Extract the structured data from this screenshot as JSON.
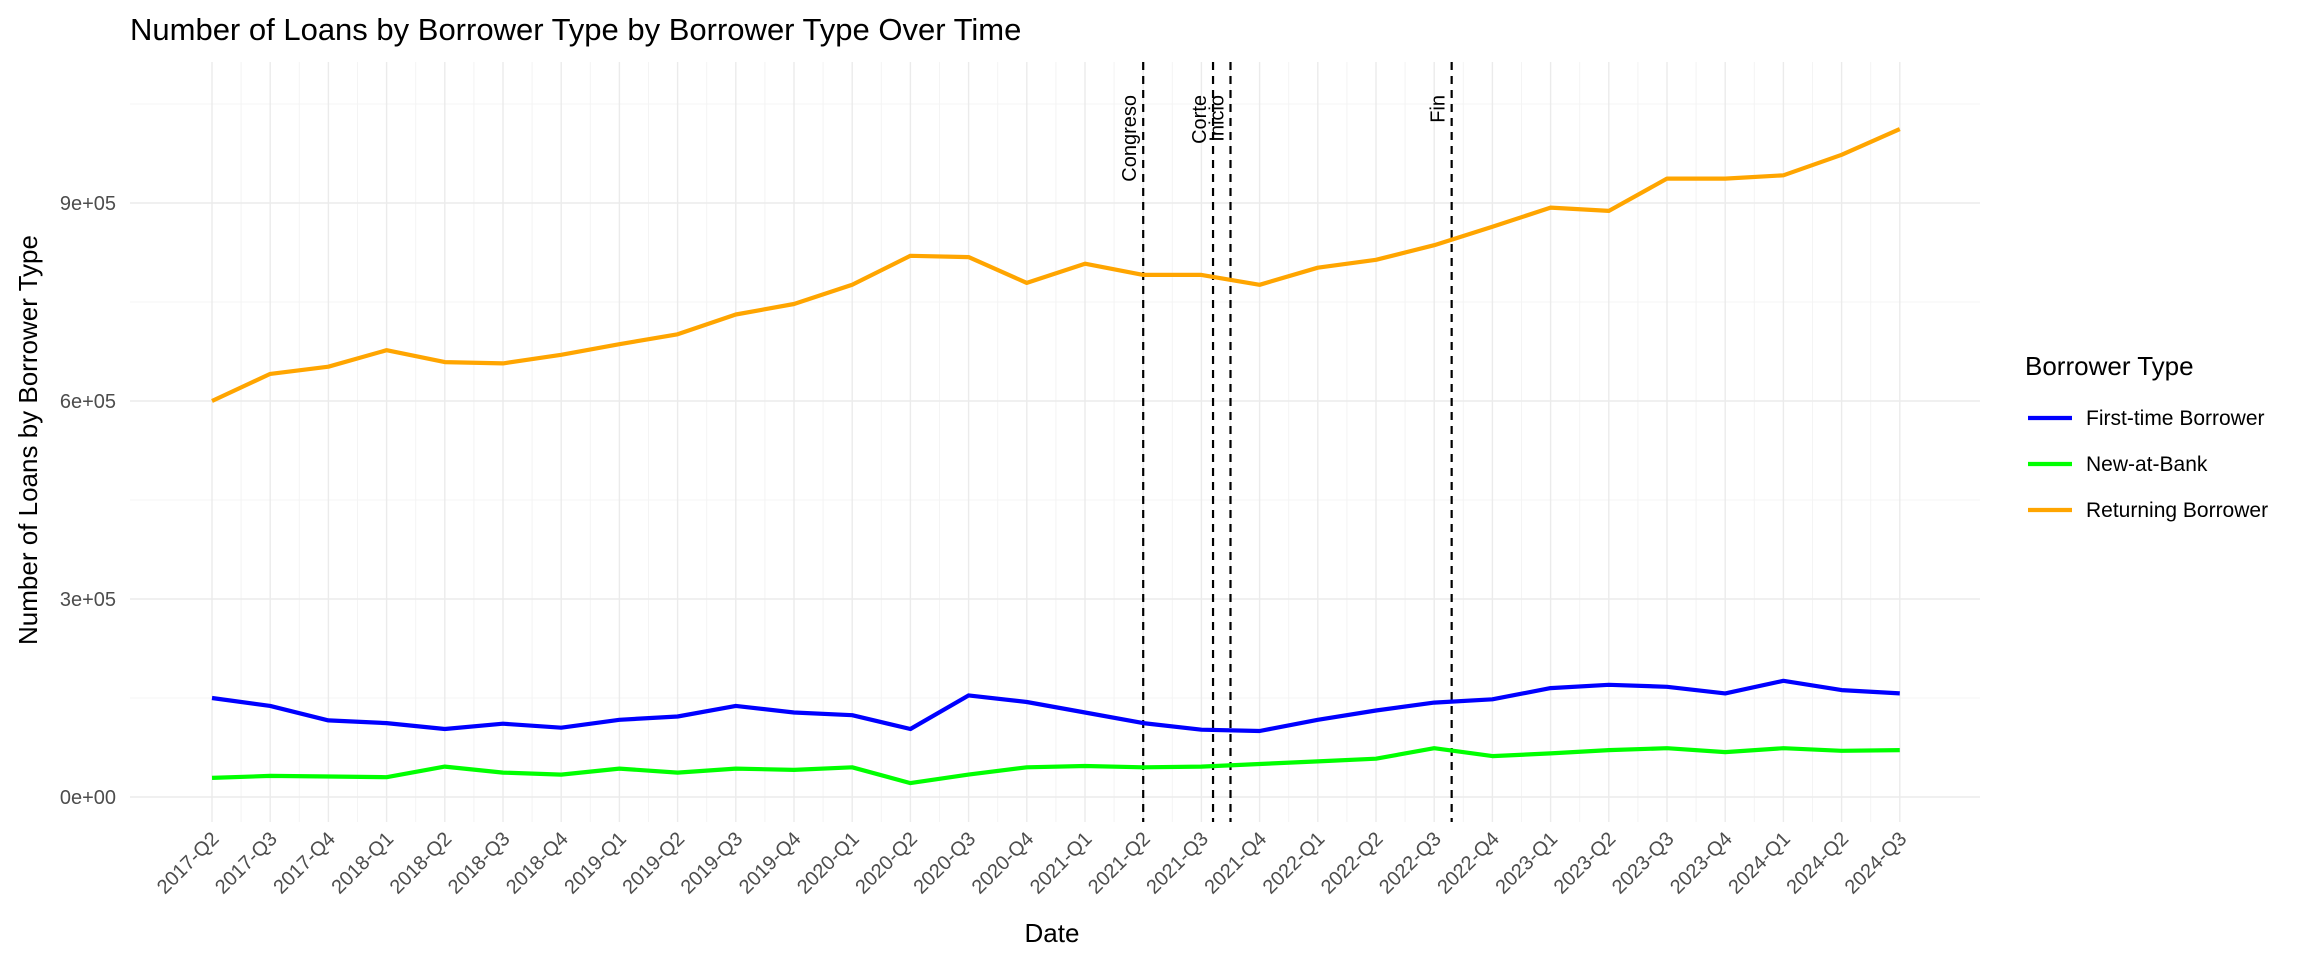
{
  "chart_data": {
    "type": "line",
    "title": "Number of Loans by Borrower Type by Borrower Type Over Time",
    "xlabel": "Date",
    "ylabel": "Number of Loans by Borrower Type",
    "categories": [
      "2017-Q2",
      "2017-Q3",
      "2017-Q4",
      "2018-Q1",
      "2018-Q2",
      "2018-Q3",
      "2018-Q4",
      "2019-Q1",
      "2019-Q2",
      "2019-Q3",
      "2019-Q4",
      "2020-Q1",
      "2020-Q2",
      "2020-Q3",
      "2020-Q4",
      "2021-Q1",
      "2021-Q2",
      "2021-Q3",
      "2021-Q4",
      "2022-Q1",
      "2022-Q2",
      "2022-Q3",
      "2022-Q4",
      "2023-Q1",
      "2023-Q2",
      "2023-Q3",
      "2023-Q4",
      "2024-Q1",
      "2024-Q2",
      "2024-Q3"
    ],
    "y_ticks": [
      0,
      300000,
      600000,
      900000
    ],
    "y_tick_labels": [
      "0e+00",
      "3e+05",
      "6e+05",
      "9e+05"
    ],
    "ylim": [
      -15000,
      1115000
    ],
    "grid": true,
    "legend": {
      "title": "Borrower Type",
      "position": "right"
    },
    "series": [
      {
        "name": "First-time Borrower",
        "color": "#0000ff",
        "values": [
          150000,
          138000,
          116000,
          112000,
          103000,
          111000,
          105000,
          117000,
          122000,
          138000,
          128000,
          124000,
          103000,
          154000,
          144000,
          128000,
          112000,
          102000,
          100000,
          117000,
          131000,
          143000,
          148000,
          165000,
          170000,
          167000,
          157000,
          176000,
          162000,
          157000
        ]
      },
      {
        "name": "New-at-Bank",
        "color": "#00ff00",
        "values": [
          29000,
          32000,
          31000,
          30000,
          46000,
          37000,
          34000,
          43000,
          37000,
          43000,
          41000,
          45000,
          21000,
          34000,
          45000,
          47000,
          45000,
          46000,
          50000,
          54000,
          58000,
          74000,
          62000,
          66000,
          71000,
          74000,
          68000,
          74000,
          70000,
          71000
        ]
      },
      {
        "name": "Returning Borrower",
        "color": "#ffa500",
        "values": [
          600000,
          641000,
          652000,
          677000,
          659000,
          657000,
          670000,
          686000,
          701000,
          731000,
          747000,
          776000,
          820000,
          818000,
          779000,
          808000,
          791000,
          791000,
          776000,
          802000,
          814000,
          836000,
          864000,
          893000,
          888000,
          937000,
          937000,
          942000,
          973000,
          1012000
        ]
      }
    ],
    "vlines": [
      {
        "label": "Congreso",
        "x_index": 16.0
      },
      {
        "label": "Corte",
        "x_index": 17.2
      },
      {
        "label": "Inicio",
        "x_index": 17.5
      },
      {
        "label": "Fin",
        "x_index": 21.3
      }
    ]
  }
}
